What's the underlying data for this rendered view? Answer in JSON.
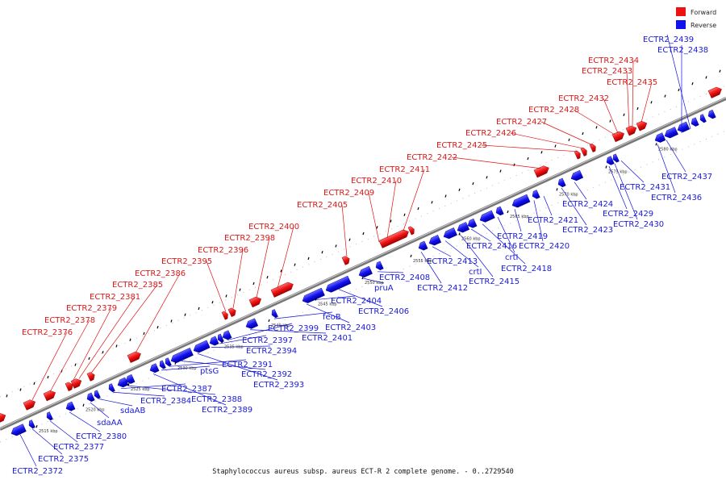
{
  "legend": {
    "forward_label": "Forward",
    "reverse_label": "Reverse",
    "forward_color": "#ee1111",
    "reverse_color": "#1111ee"
  },
  "caption": "Staphylococcus aureus subsp. aureus ECT-R 2 complete genome. - 0..2729540",
  "colors": {
    "backbone": "#777777",
    "forward_line": "#e01010",
    "reverse_line": "#1010e0",
    "tick": "#000000"
  },
  "scale_labels": [
    "2515 kbp",
    "2520 kbp",
    "2525 kbp",
    "2530 kbp",
    "2535 kbp",
    "2540 kbp",
    "2545 kbp",
    "2550 kbp",
    "2555 kbp",
    "2560 kbp",
    "2565 kbp",
    "2570 kbp",
    "2575 kbp",
    "2580 kbp"
  ],
  "forward_labels": [
    "ECTR2_2376",
    "ECTR2_2378",
    "ECTR2_2379",
    "ECTR2_2381",
    "ECTR2_2385",
    "ECTR2_2386",
    "ECTR2_2395",
    "ECTR2_2396",
    "ECTR2_2398",
    "ECTR2_2400",
    "ECTR2_2405",
    "ECTR2_2409",
    "ECTR2_2410",
    "ECTR2_2411",
    "ECTR2_2422",
    "ECTR2_2425",
    "ECTR2_2426",
    "ECTR2_2427",
    "ECTR2_2428",
    "ECTR2_2432",
    "ECTR2_2435",
    "ECTR2_2433",
    "ECTR2_2434"
  ],
  "reverse_labels": [
    "ECTR2_2372",
    "ECTR2_2375",
    "ECTR2_2377",
    "ECTR2_2380",
    "sdaAA",
    "sdaAB",
    "ECTR2_2384",
    "ECTR2_2387",
    "ECTR2_2388",
    "ECTR2_2389",
    "ptsG",
    "ECTR2_2391",
    "ECTR2_2392",
    "ECTR2_2393",
    "ECTR2_2394",
    "ECTR2_2397",
    "ECTR2_2399",
    "ECTR2_2401",
    "feoB",
    "ECTR2_2403",
    "ECTR2_2404",
    "ECTR2_2406",
    "pruA",
    "ECTR2_2408",
    "ECTR2_2412",
    "ECTR2_2413",
    "crtI",
    "ECTR2_2415",
    "ECTR2_2416",
    "ECTR2_2418",
    "crtI",
    "ECTR2_2419",
    "ECTR2_2420",
    "ECTR2_2421",
    "ECTR2_2423",
    "ECTR2_2424",
    "ECTR2_2429",
    "ECTR2_2430",
    "ECTR2_2431",
    "ECTR2_2436",
    "ECTR2_2437",
    "ECTR2_2438",
    "ECTR2_2439"
  ]
}
